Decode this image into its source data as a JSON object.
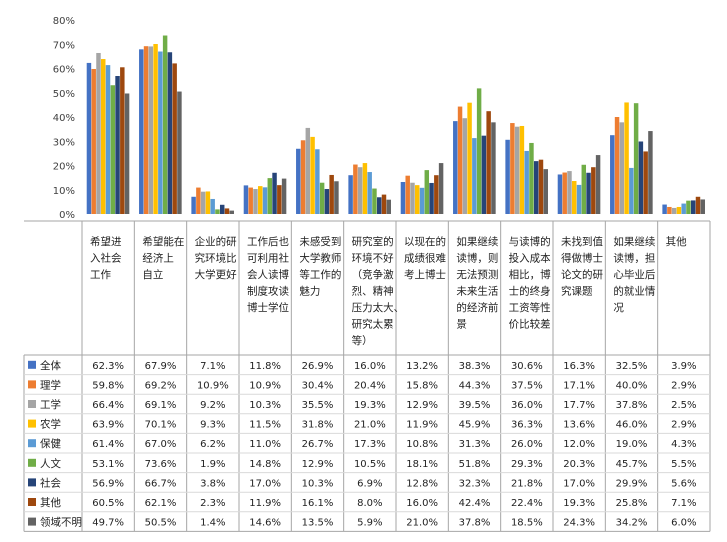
{
  "chart_data": {
    "type": "bar",
    "title": "",
    "xlabel": "",
    "ylabel": "",
    "ylim": [
      0,
      80
    ],
    "y_ticks": [
      "0%",
      "10%",
      "20%",
      "30%",
      "40%",
      "50%",
      "60%",
      "70%",
      "80%"
    ],
    "grid": false,
    "legend_position": "bottom-left, as data table row labels",
    "categories": [
      "希望进入社会工作",
      "希望能在经济上自立",
      "企业的研究环境比大学更好",
      "工作后也可利用社会人读博制度攻读博士学位",
      "未感受到大学教师等工作的魅力",
      "研究室的环境不好（竞争激烈、精神压力太大、研究太累等）",
      "以现在的成绩很难考上博士",
      "如果继续读博，则无法预测未来生活的经济前景",
      "与读博的投入成本相比，博士的终身性工资等性价比较差",
      "未找到值得做博士论文的研究课题",
      "如果继续读博，担心毕业后的就业情况",
      "其他"
    ],
    "category_lines": [
      [
        "希望进",
        "入社会",
        "工作"
      ],
      [
        "希望能在",
        "经济上",
        "自立"
      ],
      [
        "企业的研",
        "究环境比",
        "大学更好"
      ],
      [
        "工作后也",
        "可利用社",
        "会人读博",
        "制度攻读",
        "博士学位"
      ],
      [
        "未感受到",
        "大学教师",
        "等工作的",
        "魅力"
      ],
      [
        "研究室的",
        "环境不好",
        "（竞争激",
        "烈、精神",
        "压力太大、",
        "研究太累",
        "等）"
      ],
      [
        "以现在的",
        "成绩很难",
        "考上博士"
      ],
      [
        "如果继续",
        "读博，则",
        "无法预测",
        "未来生活",
        "的经济前",
        "景"
      ],
      [
        "与读博的",
        "投入成本",
        "相比，博",
        "士的终身",
        "工资等性",
        "价比较差"
      ],
      [
        "未找到值",
        "得做博士",
        "论文的研",
        "究课题"
      ],
      [
        "如果继续",
        "读博，担",
        "心毕业后",
        "的就业情",
        "况"
      ],
      [
        "其他"
      ]
    ],
    "series": [
      {
        "name": "全体",
        "color": "#4472C4",
        "values": [
          62.3,
          67.9,
          7.1,
          11.8,
          26.9,
          16.0,
          13.2,
          38.3,
          30.6,
          16.3,
          32.5,
          3.9
        ],
        "labels": [
          "62.3%",
          "67.9%",
          "7.1%",
          "11.8%",
          "26.9%",
          "16.0%",
          "13.2%",
          "38.3%",
          "30.6%",
          "16.3%",
          "32.5%",
          "3.9%"
        ]
      },
      {
        "name": "理学",
        "color": "#ED7D31",
        "values": [
          59.8,
          69.2,
          10.9,
          10.9,
          30.4,
          20.4,
          15.8,
          44.3,
          37.5,
          17.1,
          40.0,
          2.9
        ],
        "labels": [
          "59.8%",
          "69.2%",
          "10.9%",
          "10.9%",
          "30.4%",
          "20.4%",
          "15.8%",
          "44.3%",
          "37.5%",
          "17.1%",
          "40.0%",
          "2.9%"
        ]
      },
      {
        "name": "工学",
        "color": "#A5A5A5",
        "values": [
          66.4,
          69.1,
          9.2,
          10.3,
          35.5,
          19.3,
          12.9,
          39.5,
          36.0,
          17.7,
          37.8,
          2.5
        ],
        "labels": [
          "66.4%",
          "69.1%",
          "9.2%",
          "10.3%",
          "35.5%",
          "19.3%",
          "12.9%",
          "39.5%",
          "36.0%",
          "17.7%",
          "37.8%",
          "2.5%"
        ]
      },
      {
        "name": "农学",
        "color": "#FFC000",
        "values": [
          63.9,
          70.1,
          9.3,
          11.5,
          31.8,
          21.0,
          11.9,
          45.9,
          36.3,
          13.6,
          46.0,
          2.9
        ],
        "labels": [
          "63.9%",
          "70.1%",
          "9.3%",
          "11.5%",
          "31.8%",
          "21.0%",
          "11.9%",
          "45.9%",
          "36.3%",
          "13.6%",
          "46.0%",
          "2.9%"
        ]
      },
      {
        "name": "保健",
        "color": "#5B9BD5",
        "values": [
          61.4,
          67.0,
          6.2,
          11.0,
          26.7,
          17.3,
          10.8,
          31.3,
          26.0,
          12.0,
          19.0,
          4.3
        ],
        "labels": [
          "61.4%",
          "67.0%",
          "6.2%",
          "11.0%",
          "26.7%",
          "17.3%",
          "10.8%",
          "31.3%",
          "26.0%",
          "12.0%",
          "19.0%",
          "4.3%"
        ]
      },
      {
        "name": "人文",
        "color": "#70AD47",
        "values": [
          53.1,
          73.6,
          1.9,
          14.8,
          12.9,
          10.5,
          18.1,
          51.8,
          29.3,
          20.3,
          45.7,
          5.5
        ],
        "labels": [
          "53.1%",
          "73.6%",
          "1.9%",
          "14.8%",
          "12.9%",
          "10.5%",
          "18.1%",
          "51.8%",
          "29.3%",
          "20.3%",
          "45.7%",
          "5.5%"
        ]
      },
      {
        "name": "社会",
        "color": "#264478",
        "values": [
          56.9,
          66.7,
          3.8,
          17.0,
          10.3,
          6.9,
          12.8,
          32.3,
          21.8,
          17.0,
          29.9,
          5.6
        ],
        "labels": [
          "56.9%",
          "66.7%",
          "3.8%",
          "17.0%",
          "10.3%",
          "6.9%",
          "12.8%",
          "32.3%",
          "21.8%",
          "17.0%",
          "29.9%",
          "5.6%"
        ]
      },
      {
        "name": "其他",
        "color": "#9E480E",
        "values": [
          60.5,
          62.1,
          2.3,
          11.9,
          16.1,
          8.0,
          16.0,
          42.4,
          22.4,
          19.3,
          25.8,
          7.1
        ],
        "labels": [
          "60.5%",
          "62.1%",
          "2.3%",
          "11.9%",
          "16.1%",
          "8.0%",
          "16.0%",
          "42.4%",
          "22.4%",
          "19.3%",
          "25.8%",
          "7.1%"
        ]
      },
      {
        "name": "领域不明",
        "color": "#636363",
        "values": [
          49.7,
          50.5,
          1.4,
          14.6,
          13.5,
          5.9,
          21.0,
          37.8,
          18.5,
          24.3,
          34.2,
          6.0
        ],
        "labels": [
          "49.7%",
          "50.5%",
          "1.4%",
          "14.6%",
          "13.5%",
          "5.9%",
          "21.0%",
          "37.8%",
          "18.5%",
          "24.3%",
          "34.2%",
          "6.0%"
        ]
      }
    ]
  }
}
